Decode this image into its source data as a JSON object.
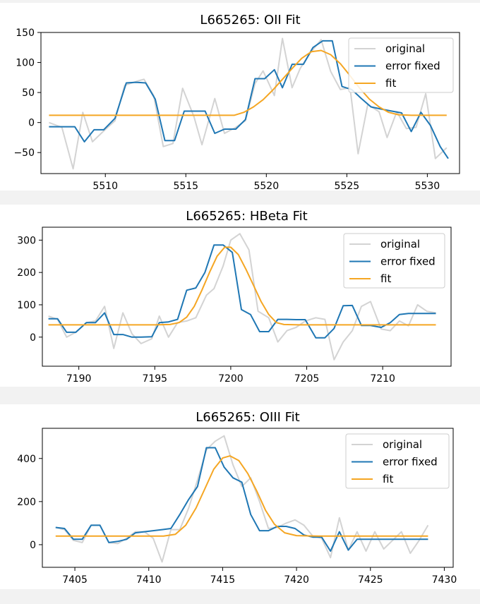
{
  "colors": {
    "original": "#d3d3d3",
    "error_fixed": "#1f77b4",
    "fit": "#f5a623"
  },
  "chart_data": [
    {
      "type": "line",
      "title": "L665265: OII Fit",
      "xlabel": "",
      "ylabel": "",
      "xlim": [
        5506,
        5532
      ],
      "ylim": [
        -85,
        150
      ],
      "xticks": [
        5510,
        5515,
        5520,
        5525,
        5530
      ],
      "yticks": [
        -50,
        0,
        50,
        100,
        150
      ],
      "grid": false,
      "legend": "top-right",
      "series": [
        {
          "name": "original",
          "color": "original",
          "x": [
            5506.5,
            5507.3,
            5508.0,
            5508.6,
            5509.2,
            5509.9,
            5510.6,
            5511.2,
            5512.0,
            5512.4,
            5513.0,
            5513.6,
            5514.2,
            5514.8,
            5515.5,
            5516.0,
            5516.8,
            5517.4,
            5518.1,
            5518.7,
            5519.3,
            5519.8,
            5520.5,
            5521.0,
            5521.6,
            5522.1,
            5522.7,
            5523.4,
            5524.0,
            5524.6,
            5525.2,
            5525.7,
            5526.3,
            5527.0,
            5527.5,
            5528.1,
            5528.7,
            5529.3,
            5529.9,
            5530.5,
            5531.2
          ],
          "y": [
            0,
            -8,
            -77,
            17,
            -32,
            -14,
            3,
            62,
            69,
            72,
            45,
            -40,
            -35,
            57,
            10,
            -37,
            40,
            -18,
            -8,
            3,
            65,
            86,
            45,
            140,
            58,
            90,
            115,
            138,
            85,
            55,
            58,
            -52,
            30,
            18,
            -25,
            18,
            -10,
            -8,
            48,
            -60,
            -42
          ]
        },
        {
          "name": "error fixed",
          "color": "error_fixed",
          "x": [
            5506.5,
            5507.3,
            5508.1,
            5508.7,
            5509.3,
            5509.9,
            5510.6,
            5511.3,
            5511.9,
            5512.5,
            5513.1,
            5513.7,
            5514.3,
            5514.9,
            5515.5,
            5516.2,
            5516.8,
            5517.4,
            5518.1,
            5518.7,
            5519.3,
            5519.9,
            5520.5,
            5521.0,
            5521.6,
            5522.3,
            5522.9,
            5523.5,
            5524.1,
            5524.7,
            5525.3,
            5525.9,
            5526.5,
            5527.2,
            5527.8,
            5528.4,
            5529.0,
            5529.6,
            5530.2,
            5530.8,
            5531.3
          ],
          "y": [
            -7,
            -7,
            -7,
            -32,
            -12,
            -12,
            7,
            66,
            67,
            66,
            39,
            -30,
            -30,
            19,
            19,
            19,
            -18,
            -11,
            -11,
            5,
            73,
            73,
            88,
            58,
            97,
            97,
            125,
            136,
            136,
            60,
            55,
            40,
            26,
            22,
            19,
            16,
            -15,
            17,
            -5,
            -40,
            -60
          ]
        },
        {
          "name": "fit",
          "color": "fit",
          "x": [
            5506.5,
            5507.5,
            5508.5,
            5509.5,
            5510.5,
            5511.5,
            5512.5,
            5513.5,
            5514.5,
            5515.5,
            5516.5,
            5517.5,
            5518.0,
            5518.6,
            5519.2,
            5519.8,
            5520.4,
            5521.0,
            5521.6,
            5522.2,
            5522.8,
            5523.4,
            5524.0,
            5524.6,
            5525.2,
            5525.8,
            5526.4,
            5527.0,
            5527.6,
            5528.2,
            5529.0,
            5530.0,
            5531.2
          ],
          "y": [
            12,
            12,
            12,
            12,
            12,
            12,
            12,
            12,
            12,
            12,
            12,
            12,
            12,
            17,
            26,
            38,
            54,
            72,
            90,
            107,
            118,
            120,
            113,
            98,
            78,
            57,
            39,
            26,
            17,
            13,
            12,
            12,
            12
          ]
        }
      ]
    },
    {
      "type": "line",
      "title": "L665265: HBeta Fit",
      "xlabel": "",
      "ylabel": "",
      "xlim": [
        7187.6,
        7214.5
      ],
      "ylim": [
        -90,
        340
      ],
      "xticks": [
        7190,
        7195,
        7200,
        7205,
        7210
      ],
      "yticks": [
        0,
        100,
        200,
        300
      ],
      "grid": false,
      "legend": "top-right",
      "series": [
        {
          "name": "original",
          "color": "original",
          "x": [
            7188.0,
            7188.6,
            7189.2,
            7189.8,
            7190.5,
            7191.1,
            7191.7,
            7192.3,
            7192.9,
            7193.5,
            7194.1,
            7194.8,
            7195.3,
            7195.9,
            7196.5,
            7197.1,
            7197.7,
            7198.4,
            7198.9,
            7199.5,
            7200.0,
            7200.6,
            7201.2,
            7201.8,
            7202.5,
            7203.1,
            7203.7,
            7204.3,
            7204.9,
            7205.6,
            7206.2,
            7206.8,
            7207.4,
            7208.0,
            7208.6,
            7209.2,
            7209.9,
            7210.5,
            7211.1,
            7211.7,
            7212.3,
            7212.9,
            7213.5
          ],
          "y": [
            65,
            55,
            0,
            15,
            45,
            50,
            95,
            -35,
            75,
            10,
            -20,
            -5,
            65,
            0,
            45,
            50,
            60,
            130,
            150,
            220,
            300,
            320,
            270,
            80,
            60,
            -15,
            20,
            30,
            50,
            60,
            55,
            -70,
            -15,
            20,
            95,
            110,
            25,
            20,
            50,
            35,
            100,
            80,
            75
          ]
        },
        {
          "name": "error fixed",
          "color": "error_fixed",
          "x": [
            7188.0,
            7188.6,
            7189.2,
            7189.8,
            7190.5,
            7191.1,
            7191.7,
            7192.3,
            7192.9,
            7193.5,
            7194.1,
            7194.8,
            7195.3,
            7195.9,
            7196.5,
            7197.1,
            7197.7,
            7198.3,
            7198.9,
            7199.5,
            7200.1,
            7200.7,
            7201.3,
            7201.9,
            7202.5,
            7203.1,
            7203.7,
            7204.3,
            7204.9,
            7205.6,
            7206.2,
            7206.8,
            7207.4,
            7208.0,
            7208.6,
            7209.2,
            7209.9,
            7210.5,
            7211.1,
            7211.7,
            7212.3,
            7212.9,
            7213.5
          ],
          "y": [
            57,
            57,
            15,
            15,
            45,
            45,
            75,
            8,
            8,
            0,
            0,
            1,
            45,
            47,
            55,
            145,
            152,
            200,
            285,
            285,
            262,
            85,
            70,
            17,
            17,
            55,
            55,
            54,
            54,
            -2,
            -2,
            27,
            97,
            98,
            36,
            36,
            30,
            45,
            70,
            73,
            73,
            73,
            73
          ]
        },
        {
          "name": "fit",
          "color": "fit",
          "x": [
            7188.0,
            7189.0,
            7190.0,
            7191.0,
            7192.0,
            7193.0,
            7194.0,
            7195.0,
            7196.0,
            7196.6,
            7197.1,
            7197.6,
            7198.1,
            7198.6,
            7199.1,
            7199.6,
            7200.0,
            7200.5,
            7201.0,
            7201.5,
            7202.0,
            7202.5,
            7203.0,
            7203.5,
            7204.5,
            7205.5,
            7206.5,
            7207.5,
            7208.5,
            7209.5,
            7210.5,
            7211.5,
            7212.5,
            7213.5
          ],
          "y": [
            38,
            38,
            38,
            38,
            38,
            38,
            38,
            38,
            39,
            45,
            62,
            95,
            145,
            200,
            250,
            278,
            278,
            255,
            210,
            160,
            110,
            70,
            45,
            39,
            38,
            38,
            38,
            38,
            38,
            38,
            38,
            38,
            38,
            38
          ]
        }
      ]
    },
    {
      "type": "line",
      "title": "L665265: OIII Fit",
      "xlabel": "",
      "ylabel": "",
      "xlim": [
        7402.8,
        7430.6
      ],
      "ylim": [
        -105,
        540
      ],
      "xticks": [
        7405,
        7410,
        7415,
        7420,
        7425,
        7430
      ],
      "yticks": [
        0,
        200,
        400
      ],
      "grid": false,
      "legend": "top-right",
      "series": [
        {
          "name": "original",
          "color": "original",
          "x": [
            7403.7,
            7404.3,
            7404.9,
            7405.5,
            7406.1,
            7406.7,
            7407.3,
            7407.9,
            7408.5,
            7409.1,
            7409.7,
            7410.3,
            7410.9,
            7411.5,
            7412.1,
            7412.7,
            7413.3,
            7413.9,
            7414.5,
            7415.1,
            7415.7,
            7416.3,
            7416.9,
            7417.5,
            7418.1,
            7418.7,
            7419.3,
            7419.9,
            7420.5,
            7421.1,
            7421.7,
            7422.3,
            7422.9,
            7423.5,
            7424.1,
            7424.7,
            7425.3,
            7425.9,
            7426.5,
            7427.1,
            7427.7,
            7428.3,
            7428.9
          ],
          "y": [
            80,
            70,
            20,
            10,
            90,
            90,
            10,
            5,
            30,
            60,
            60,
            30,
            -80,
            70,
            70,
            170,
            300,
            440,
            480,
            505,
            370,
            270,
            310,
            200,
            75,
            80,
            100,
            115,
            90,
            40,
            30,
            -60,
            125,
            -25,
            60,
            -30,
            60,
            -20,
            20,
            60,
            -40,
            20,
            90
          ]
        },
        {
          "name": "error fixed",
          "color": "error_fixed",
          "x": [
            7403.7,
            7404.3,
            7404.9,
            7405.5,
            7406.1,
            7406.7,
            7407.3,
            7407.9,
            7408.5,
            7409.1,
            7409.7,
            7410.3,
            7410.9,
            7411.5,
            7412.1,
            7412.7,
            7413.3,
            7413.9,
            7414.5,
            7415.1,
            7415.7,
            7416.3,
            7416.9,
            7417.5,
            7418.1,
            7418.7,
            7419.3,
            7419.9,
            7420.5,
            7421.1,
            7421.7,
            7422.3,
            7422.9,
            7423.5,
            7424.1,
            7424.7,
            7425.3,
            7425.9,
            7426.5,
            7427.1,
            7427.7,
            7428.3,
            7428.9
          ],
          "y": [
            80,
            75,
            25,
            25,
            90,
            90,
            10,
            15,
            25,
            55,
            60,
            65,
            70,
            75,
            140,
            210,
            270,
            450,
            450,
            360,
            310,
            290,
            140,
            65,
            65,
            85,
            85,
            75,
            45,
            35,
            35,
            -30,
            60,
            -25,
            25,
            25,
            25,
            25,
            25,
            25,
            25,
            25,
            25
          ]
        },
        {
          "name": "fit",
          "color": "fit",
          "x": [
            7403.7,
            7405.0,
            7406.5,
            7408.0,
            7409.5,
            7411.0,
            7411.8,
            7412.5,
            7413.2,
            7413.8,
            7414.4,
            7415.0,
            7415.5,
            7416.1,
            7416.7,
            7417.3,
            7417.9,
            7418.5,
            7419.2,
            7420.0,
            7421.5,
            7423.0,
            7424.5,
            7426.0,
            7427.5,
            7428.9
          ],
          "y": [
            40,
            40,
            40,
            40,
            40,
            40,
            48,
            90,
            170,
            260,
            350,
            402,
            412,
            390,
            330,
            250,
            160,
            95,
            55,
            42,
            40,
            40,
            40,
            40,
            40,
            40
          ]
        }
      ]
    }
  ]
}
